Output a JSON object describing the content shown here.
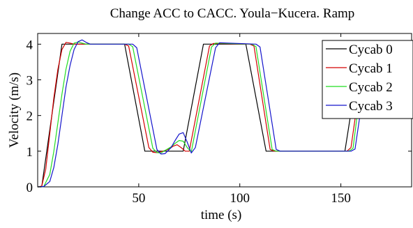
{
  "chart_data": {
    "type": "line",
    "title": "Change ACC to CACC. Youla−Kucera. Ramp",
    "xlabel": "time (s)",
    "ylabel": "Velocity (m/s)",
    "xlim": [
      0,
      185
    ],
    "ylim": [
      0,
      4.3
    ],
    "xticks": [
      50,
      100,
      150
    ],
    "yticks": [
      0,
      1,
      2,
      3,
      4
    ],
    "grid": false,
    "legend_position": "top-right",
    "series": [
      {
        "name": "Cycab 0",
        "color": "#000000",
        "x": [
          0,
          2,
          12,
          43,
          53,
          72,
          82,
          103,
          113,
          152,
          160
        ],
        "y": [
          0,
          0,
          4,
          4,
          1,
          1,
          4,
          4,
          1,
          1,
          3.9
        ]
      },
      {
        "name": "Cycab 1",
        "color": "#d40000",
        "x": [
          0,
          2,
          4,
          6,
          8,
          10,
          12,
          14,
          16,
          18,
          43,
          45,
          55,
          57,
          59,
          62,
          65,
          67,
          69,
          71,
          73,
          75,
          85,
          87,
          105,
          107,
          115,
          117,
          153,
          155,
          161
        ],
        "y": [
          0,
          0.02,
          0.5,
          1.5,
          2.5,
          3.3,
          3.85,
          4.05,
          4.03,
          4.0,
          4.0,
          3.95,
          1.1,
          0.97,
          0.96,
          1.0,
          1.06,
          1.14,
          1.18,
          1.1,
          1.0,
          1.0,
          3.95,
          4.02,
          4.0,
          3.95,
          1.05,
          1.0,
          1.0,
          1.1,
          3.5
        ]
      },
      {
        "name": "Cycab 2",
        "color": "#22dd22",
        "x": [
          0,
          3,
          6,
          8,
          10,
          12,
          14,
          16,
          18,
          20,
          22,
          24,
          45,
          47,
          57,
          59,
          61,
          63,
          66,
          68,
          70,
          72,
          74,
          76,
          86,
          88,
          106,
          108,
          116,
          118,
          154,
          156,
          161
        ],
        "y": [
          0,
          0.01,
          0.35,
          1.0,
          1.8,
          2.6,
          3.3,
          3.8,
          4.03,
          4.06,
          4.03,
          4.0,
          4.0,
          3.93,
          1.08,
          0.96,
          0.95,
          1.02,
          1.12,
          1.22,
          1.3,
          1.28,
          1.1,
          0.98,
          3.92,
          4.03,
          4.0,
          3.93,
          1.05,
          1.0,
          1.0,
          1.08,
          3.3
        ]
      },
      {
        "name": "Cycab 3",
        "color": "#1414cc",
        "x": [
          0,
          3,
          6,
          8,
          10,
          12,
          14,
          16,
          18,
          20,
          22,
          24,
          26,
          47,
          49,
          59,
          61,
          63,
          66,
          68,
          70,
          72,
          74,
          76,
          78,
          88,
          90,
          108,
          110,
          118,
          120,
          155,
          157,
          162
        ],
        "y": [
          0,
          0.01,
          0.15,
          0.55,
          1.2,
          2.0,
          2.8,
          3.4,
          3.85,
          4.07,
          4.12,
          4.05,
          4.0,
          4.0,
          3.9,
          1.05,
          0.92,
          0.93,
          1.1,
          1.3,
          1.48,
          1.52,
          1.25,
          0.95,
          1.1,
          3.9,
          4.04,
          4.0,
          3.92,
          1.05,
          1.0,
          1.0,
          1.06,
          3.0
        ]
      }
    ]
  }
}
